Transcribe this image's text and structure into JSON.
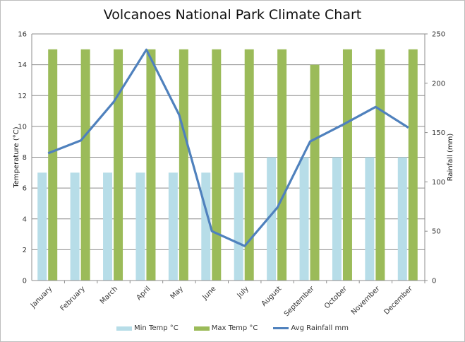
{
  "chart_data": {
    "type": "bar",
    "title": "Volcanoes National Park Climate Chart",
    "categories": [
      "January",
      "February",
      "March",
      "April",
      "May",
      "June",
      "July",
      "August",
      "September",
      "October",
      "November",
      "December"
    ],
    "ylabel": "Temperature  (°C)",
    "y2label": "Rainfall (mm)",
    "ylim": [
      0,
      16
    ],
    "y2lim": [
      0,
      250
    ],
    "yticks": [
      0,
      2,
      4,
      6,
      8,
      10,
      12,
      14,
      16
    ],
    "y2ticks": [
      0,
      50,
      100,
      150,
      200,
      250
    ],
    "grid": true,
    "legend_position": "bottom",
    "series": [
      {
        "name": "Min Temp °C",
        "type": "bar",
        "axis": "left",
        "color": "#b7dde8",
        "values": [
          7,
          7,
          7,
          7,
          7,
          7,
          7,
          8,
          8,
          8,
          8,
          8
        ]
      },
      {
        "name": "Max Temp °C",
        "type": "bar",
        "axis": "left",
        "color": "#9bbb59",
        "values": [
          15,
          15,
          15,
          15,
          15,
          15,
          15,
          15,
          14,
          15,
          15,
          15
        ]
      },
      {
        "name": "Avg Rainfall mm",
        "type": "line",
        "axis": "right",
        "color": "#4f81bd",
        "values": [
          129,
          142,
          181,
          234,
          168,
          50,
          35,
          74,
          141,
          158,
          176,
          155
        ]
      }
    ]
  }
}
